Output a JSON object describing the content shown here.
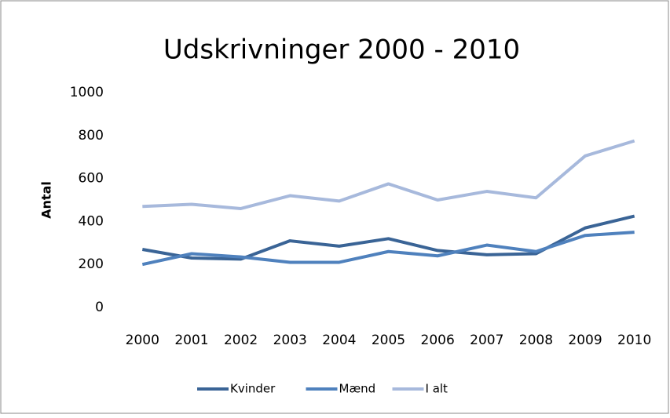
{
  "chart_data": {
    "type": "line",
    "title": "Udskrivninger 2000 - 2010",
    "y_label": "Antal",
    "categories": [
      "2000",
      "2001",
      "2002",
      "2003",
      "2004",
      "2005",
      "2006",
      "2007",
      "2008",
      "2009",
      "2010"
    ],
    "series": [
      {
        "name": "Kvinder",
        "color": "#3a6496",
        "values": [
          270,
          230,
          225,
          310,
          285,
          320,
          265,
          245,
          250,
          370,
          425
        ]
      },
      {
        "name": "Mænd",
        "color": "#4f81bd",
        "values": [
          200,
          250,
          235,
          210,
          210,
          260,
          240,
          290,
          260,
          335,
          350
        ]
      },
      {
        "name": "I alt",
        "color": "#a7b9dc",
        "values": [
          470,
          480,
          460,
          520,
          495,
          575,
          500,
          540,
          510,
          705,
          775
        ]
      }
    ],
    "ylim": [
      0,
      1000
    ],
    "yticks": [
      0,
      200,
      400,
      600,
      800,
      1000
    ],
    "legend": "bottom"
  }
}
